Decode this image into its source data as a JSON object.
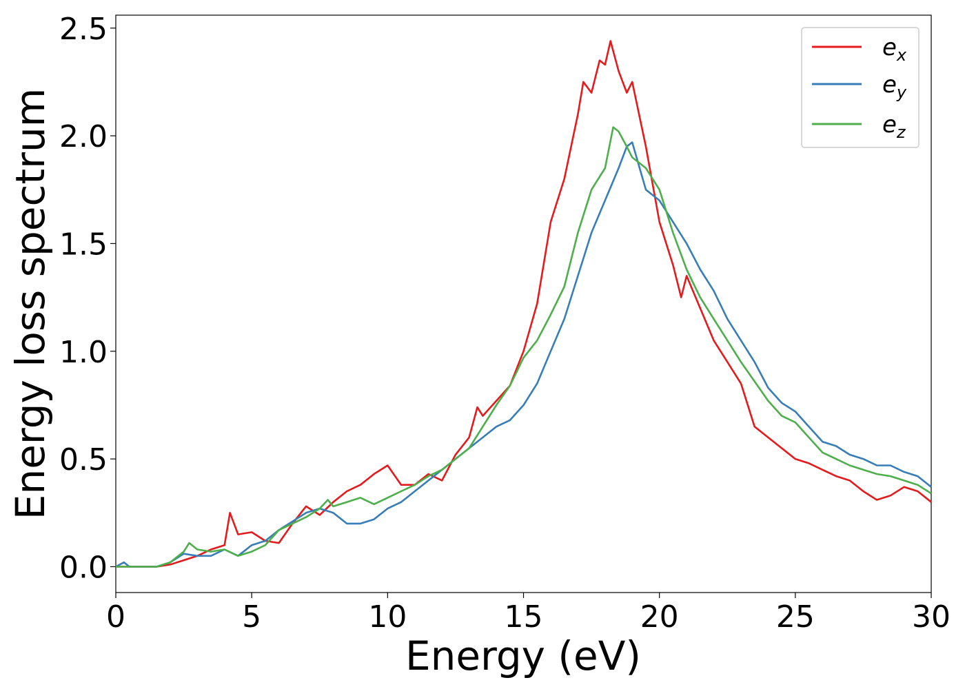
{
  "chart_data": {
    "type": "line",
    "xlabel": "Energy (eV)",
    "ylabel": "Energy loss spectrum",
    "xlim": [
      0,
      30
    ],
    "ylim": [
      -0.12,
      2.56
    ],
    "xticks": [
      0,
      5,
      10,
      15,
      20,
      25,
      30
    ],
    "xtick_labels": [
      "0",
      "5",
      "10",
      "15",
      "20",
      "25",
      "30"
    ],
    "yticks": [
      0.0,
      0.5,
      1.0,
      1.5,
      2.0,
      2.5
    ],
    "ytick_labels": [
      "0.0",
      "0.5",
      "1.0",
      "1.5",
      "2.0",
      "2.5"
    ],
    "grid": false,
    "legend_position": "top-right",
    "series": [
      {
        "name": "e_x",
        "legend_base": "e",
        "legend_sub": "x",
        "color": "#e41a1c",
        "x": [
          0,
          0.5,
          1,
          1.5,
          2,
          2.5,
          3,
          3.5,
          4,
          4.2,
          4.5,
          5,
          5.5,
          6,
          6.5,
          7,
          7.5,
          8,
          8.5,
          9,
          9.5,
          10,
          10.5,
          11,
          11.5,
          12,
          12.5,
          13,
          13.3,
          13.5,
          14,
          14.5,
          15,
          15.5,
          16,
          16.5,
          17,
          17.2,
          17.5,
          17.8,
          18,
          18.2,
          18.5,
          18.8,
          19,
          19.5,
          20,
          20.5,
          20.8,
          21,
          21.5,
          22,
          22.5,
          23,
          23.5,
          24,
          24.5,
          25,
          25.5,
          26,
          26.5,
          27,
          27.5,
          28,
          28.5,
          29,
          29.5,
          30
        ],
        "y": [
          0,
          0,
          0,
          0,
          0.01,
          0.03,
          0.05,
          0.08,
          0.1,
          0.25,
          0.15,
          0.16,
          0.12,
          0.11,
          0.2,
          0.28,
          0.24,
          0.3,
          0.35,
          0.38,
          0.43,
          0.47,
          0.38,
          0.38,
          0.43,
          0.4,
          0.52,
          0.6,
          0.74,
          0.7,
          0.77,
          0.84,
          1.0,
          1.22,
          1.6,
          1.8,
          2.1,
          2.25,
          2.2,
          2.35,
          2.33,
          2.44,
          2.3,
          2.2,
          2.25,
          1.95,
          1.6,
          1.4,
          1.25,
          1.35,
          1.2,
          1.05,
          0.95,
          0.85,
          0.65,
          0.6,
          0.55,
          0.5,
          0.48,
          0.45,
          0.42,
          0.4,
          0.35,
          0.31,
          0.33,
          0.37,
          0.35,
          0.3
        ]
      },
      {
        "name": "e_y",
        "legend_base": "e",
        "legend_sub": "y",
        "color": "#377eb8",
        "x": [
          0,
          0.3,
          0.5,
          1,
          1.5,
          2,
          2.5,
          3,
          3.5,
          4,
          4.5,
          5,
          5.5,
          6,
          6.5,
          7,
          7.5,
          8,
          8.5,
          9,
          9.5,
          10,
          10.5,
          11,
          11.5,
          12,
          12.5,
          13,
          13.5,
          14,
          14.5,
          15,
          15.5,
          16,
          16.5,
          17,
          17.5,
          18,
          18.5,
          18.8,
          19,
          19.5,
          20,
          20.5,
          21,
          21.5,
          22,
          22.5,
          23,
          23.5,
          24,
          24.5,
          25,
          25.5,
          26,
          26.5,
          27,
          27.5,
          28,
          28.5,
          29,
          29.5,
          30
        ],
        "y": [
          0,
          0.02,
          0,
          0,
          0,
          0.02,
          0.06,
          0.05,
          0.05,
          0.08,
          0.05,
          0.1,
          0.12,
          0.17,
          0.21,
          0.25,
          0.27,
          0.25,
          0.2,
          0.2,
          0.22,
          0.27,
          0.3,
          0.35,
          0.4,
          0.45,
          0.5,
          0.55,
          0.6,
          0.65,
          0.68,
          0.75,
          0.85,
          1.0,
          1.15,
          1.35,
          1.55,
          1.7,
          1.85,
          1.95,
          1.97,
          1.75,
          1.7,
          1.6,
          1.5,
          1.38,
          1.28,
          1.15,
          1.05,
          0.95,
          0.83,
          0.76,
          0.72,
          0.65,
          0.58,
          0.56,
          0.52,
          0.5,
          0.47,
          0.47,
          0.44,
          0.42,
          0.37
        ]
      },
      {
        "name": "e_z",
        "legend_base": "e",
        "legend_sub": "z",
        "color": "#4daf4a",
        "x": [
          0,
          0.5,
          1,
          1.5,
          2,
          2.5,
          2.7,
          3,
          3.5,
          4,
          4.5,
          5,
          5.5,
          6,
          6.5,
          7,
          7.5,
          7.8,
          8,
          8.5,
          9,
          9.5,
          10,
          10.5,
          11,
          11.5,
          12,
          12.5,
          13,
          13.5,
          14,
          14.5,
          15,
          15.5,
          16,
          16.5,
          17,
          17.5,
          18,
          18.3,
          18.5,
          18.8,
          19,
          19.5,
          20,
          20.5,
          21,
          21.5,
          22,
          22.5,
          23,
          23.5,
          24,
          24.5,
          25,
          25.5,
          26,
          26.5,
          27,
          27.5,
          28,
          28.5,
          29,
          29.5,
          30
        ],
        "y": [
          0,
          0,
          0,
          0,
          0.02,
          0.07,
          0.11,
          0.08,
          0.07,
          0.08,
          0.05,
          0.07,
          0.1,
          0.17,
          0.2,
          0.23,
          0.27,
          0.31,
          0.28,
          0.3,
          0.32,
          0.29,
          0.32,
          0.35,
          0.38,
          0.42,
          0.45,
          0.5,
          0.55,
          0.65,
          0.75,
          0.84,
          0.97,
          1.05,
          1.17,
          1.3,
          1.55,
          1.75,
          1.85,
          2.04,
          2.02,
          1.95,
          1.9,
          1.85,
          1.75,
          1.55,
          1.38,
          1.25,
          1.15,
          1.05,
          0.95,
          0.86,
          0.77,
          0.7,
          0.67,
          0.6,
          0.53,
          0.5,
          0.47,
          0.45,
          0.43,
          0.42,
          0.4,
          0.38,
          0.34
        ]
      }
    ]
  }
}
